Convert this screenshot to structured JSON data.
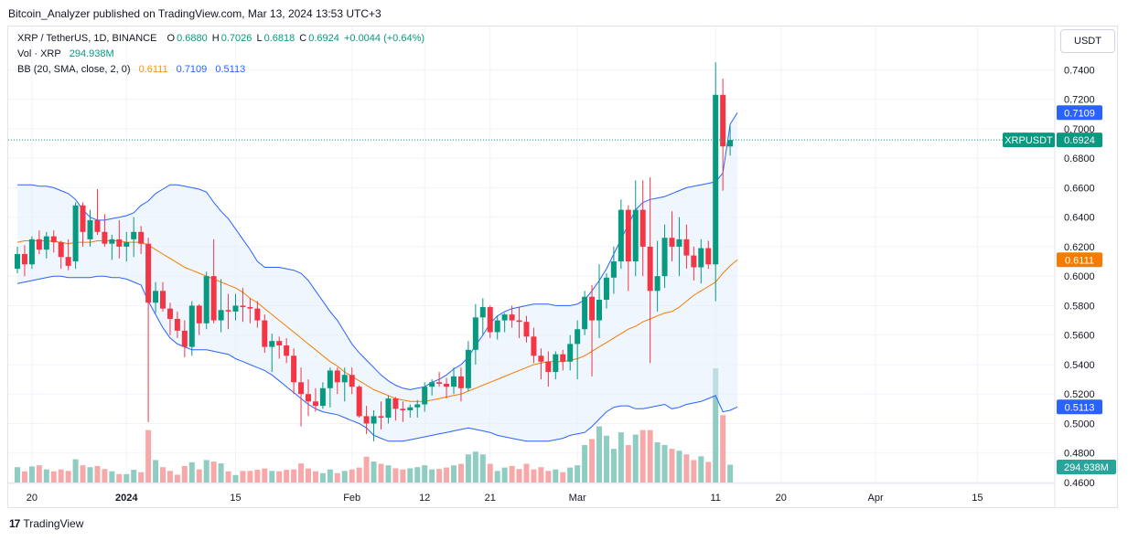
{
  "header": {
    "published": "Bitcoin_Analyzer published on TradingView.com, Mar 13, 2024 13:53 UTC+3"
  },
  "legend": {
    "symbol": "XRP / TetherUS, 1D, BINANCE",
    "o_label": "O",
    "o": "0.6880",
    "h_label": "H",
    "h": "0.7026",
    "l_label": "L",
    "l": "0.6818",
    "c_label": "C",
    "c": "0.6924",
    "change": "+0.0044 (+0.64%)",
    "vol_label": "Vol · XRP",
    "vol": "294.938M",
    "bb_label": "BB (20, SMA, close, 2, 0)",
    "bb_basis": "0.6111",
    "bb_upper": "0.7109",
    "bb_lower": "0.5113"
  },
  "currency_button": "USDT",
  "footer": {
    "brand": "TradingView",
    "logo": "17"
  },
  "colors": {
    "up": "#089981",
    "down": "#f23645",
    "bb_band": "#2962ff",
    "bb_basis": "#f57c00",
    "fill": "#eef4fc",
    "vol_up": "#8fcdc3",
    "vol_down": "#f7a9a9"
  },
  "chart_data": {
    "type": "candlestick",
    "x_ticks": [
      "20",
      "2024",
      "15",
      "Feb",
      "12",
      "21",
      "Mar",
      "11",
      "20",
      "Apr",
      "15"
    ],
    "y_ticks": [
      "0.7400",
      "0.7200",
      "0.7000",
      "0.6800",
      "0.6600",
      "0.6400",
      "0.6200",
      "0.6000",
      "0.5800",
      "0.5600",
      "0.5400",
      "0.5200",
      "0.5000",
      "0.4800",
      "0.4600"
    ],
    "ylim": [
      0.46,
      0.752
    ],
    "start_date": "2023-12-18",
    "candles": [
      {
        "o": 0.605,
        "h": 0.62,
        "l": 0.602,
        "c": 0.615,
        "v": 82
      },
      {
        "o": 0.615,
        "h": 0.621,
        "l": 0.6,
        "c": 0.608,
        "v": 60
      },
      {
        "o": 0.608,
        "h": 0.627,
        "l": 0.605,
        "c": 0.625,
        "v": 86
      },
      {
        "o": 0.625,
        "h": 0.631,
        "l": 0.615,
        "c": 0.618,
        "v": 92
      },
      {
        "o": 0.618,
        "h": 0.63,
        "l": 0.612,
        "c": 0.627,
        "v": 70
      },
      {
        "o": 0.627,
        "h": 0.631,
        "l": 0.616,
        "c": 0.623,
        "v": 60
      },
      {
        "o": 0.623,
        "h": 0.624,
        "l": 0.605,
        "c": 0.613,
        "v": 70
      },
      {
        "o": 0.613,
        "h": 0.625,
        "l": 0.604,
        "c": 0.607,
        "v": 62
      },
      {
        "o": 0.61,
        "h": 0.65,
        "l": 0.605,
        "c": 0.648,
        "v": 124
      },
      {
        "o": 0.648,
        "h": 0.65,
        "l": 0.62,
        "c": 0.63,
        "v": 92
      },
      {
        "o": 0.625,
        "h": 0.645,
        "l": 0.62,
        "c": 0.638,
        "v": 82
      },
      {
        "o": 0.638,
        "h": 0.659,
        "l": 0.628,
        "c": 0.63,
        "v": 88
      },
      {
        "o": 0.63,
        "h": 0.642,
        "l": 0.62,
        "c": 0.622,
        "v": 72
      },
      {
        "o": 0.622,
        "h": 0.628,
        "l": 0.611,
        "c": 0.625,
        "v": 60
      },
      {
        "o": 0.625,
        "h": 0.638,
        "l": 0.612,
        "c": 0.62,
        "v": 45
      },
      {
        "o": 0.62,
        "h": 0.63,
        "l": 0.61,
        "c": 0.623,
        "v": 45
      },
      {
        "o": 0.625,
        "h": 0.64,
        "l": 0.613,
        "c": 0.63,
        "v": 68
      },
      {
        "o": 0.63,
        "h": 0.634,
        "l": 0.615,
        "c": 0.622,
        "v": 55
      },
      {
        "o": 0.622,
        "h": 0.626,
        "l": 0.501,
        "c": 0.582,
        "v": 280
      },
      {
        "o": 0.582,
        "h": 0.596,
        "l": 0.575,
        "c": 0.59,
        "v": 120
      },
      {
        "o": 0.59,
        "h": 0.596,
        "l": 0.576,
        "c": 0.578,
        "v": 82
      },
      {
        "o": 0.578,
        "h": 0.582,
        "l": 0.56,
        "c": 0.571,
        "v": 62
      },
      {
        "o": 0.571,
        "h": 0.576,
        "l": 0.558,
        "c": 0.563,
        "v": 42
      },
      {
        "o": 0.563,
        "h": 0.57,
        "l": 0.545,
        "c": 0.552,
        "v": 88
      },
      {
        "o": 0.552,
        "h": 0.583,
        "l": 0.546,
        "c": 0.58,
        "v": 108
      },
      {
        "o": 0.58,
        "h": 0.581,
        "l": 0.56,
        "c": 0.568,
        "v": 70
      },
      {
        "o": 0.568,
        "h": 0.603,
        "l": 0.564,
        "c": 0.6,
        "v": 120
      },
      {
        "o": 0.6,
        "h": 0.625,
        "l": 0.568,
        "c": 0.57,
        "v": 112
      },
      {
        "o": 0.57,
        "h": 0.598,
        "l": 0.562,
        "c": 0.577,
        "v": 102
      },
      {
        "o": 0.577,
        "h": 0.588,
        "l": 0.564,
        "c": 0.576,
        "v": 60
      },
      {
        "o": 0.576,
        "h": 0.588,
        "l": 0.57,
        "c": 0.58,
        "v": 40
      },
      {
        "o": 0.58,
        "h": 0.592,
        "l": 0.569,
        "c": 0.579,
        "v": 62
      },
      {
        "o": 0.579,
        "h": 0.585,
        "l": 0.568,
        "c": 0.578,
        "v": 62
      },
      {
        "o": 0.578,
        "h": 0.583,
        "l": 0.565,
        "c": 0.57,
        "v": 68
      },
      {
        "o": 0.57,
        "h": 0.574,
        "l": 0.548,
        "c": 0.552,
        "v": 75
      },
      {
        "o": 0.552,
        "h": 0.561,
        "l": 0.535,
        "c": 0.556,
        "v": 62
      },
      {
        "o": 0.556,
        "h": 0.559,
        "l": 0.544,
        "c": 0.553,
        "v": 60
      },
      {
        "o": 0.553,
        "h": 0.558,
        "l": 0.541,
        "c": 0.546,
        "v": 68
      },
      {
        "o": 0.546,
        "h": 0.551,
        "l": 0.52,
        "c": 0.528,
        "v": 70
      },
      {
        "o": 0.528,
        "h": 0.538,
        "l": 0.498,
        "c": 0.52,
        "v": 102
      },
      {
        "o": 0.52,
        "h": 0.53,
        "l": 0.505,
        "c": 0.515,
        "v": 75
      },
      {
        "o": 0.515,
        "h": 0.524,
        "l": 0.508,
        "c": 0.512,
        "v": 60
      },
      {
        "o": 0.512,
        "h": 0.528,
        "l": 0.51,
        "c": 0.524,
        "v": 50
      },
      {
        "o": 0.524,
        "h": 0.538,
        "l": 0.511,
        "c": 0.536,
        "v": 70
      },
      {
        "o": 0.536,
        "h": 0.538,
        "l": 0.52,
        "c": 0.528,
        "v": 50
      },
      {
        "o": 0.528,
        "h": 0.538,
        "l": 0.515,
        "c": 0.533,
        "v": 62
      },
      {
        "o": 0.533,
        "h": 0.538,
        "l": 0.52,
        "c": 0.525,
        "v": 70
      },
      {
        "o": 0.525,
        "h": 0.526,
        "l": 0.504,
        "c": 0.505,
        "v": 80
      },
      {
        "o": 0.505,
        "h": 0.512,
        "l": 0.493,
        "c": 0.5,
        "v": 138
      },
      {
        "o": 0.5,
        "h": 0.509,
        "l": 0.488,
        "c": 0.505,
        "v": 112
      },
      {
        "o": 0.505,
        "h": 0.515,
        "l": 0.496,
        "c": 0.504,
        "v": 100
      },
      {
        "o": 0.504,
        "h": 0.519,
        "l": 0.5,
        "c": 0.517,
        "v": 92
      },
      {
        "o": 0.517,
        "h": 0.518,
        "l": 0.502,
        "c": 0.51,
        "v": 76
      },
      {
        "o": 0.51,
        "h": 0.515,
        "l": 0.501,
        "c": 0.509,
        "v": 70
      },
      {
        "o": 0.509,
        "h": 0.513,
        "l": 0.504,
        "c": 0.511,
        "v": 76
      },
      {
        "o": 0.511,
        "h": 0.516,
        "l": 0.504,
        "c": 0.513,
        "v": 82
      },
      {
        "o": 0.513,
        "h": 0.528,
        "l": 0.508,
        "c": 0.525,
        "v": 92
      },
      {
        "o": 0.525,
        "h": 0.53,
        "l": 0.519,
        "c": 0.528,
        "v": 70
      },
      {
        "o": 0.528,
        "h": 0.535,
        "l": 0.525,
        "c": 0.527,
        "v": 72
      },
      {
        "o": 0.527,
        "h": 0.531,
        "l": 0.517,
        "c": 0.525,
        "v": 80
      },
      {
        "o": 0.525,
        "h": 0.538,
        "l": 0.52,
        "c": 0.532,
        "v": 92
      },
      {
        "o": 0.532,
        "h": 0.538,
        "l": 0.515,
        "c": 0.524,
        "v": 100
      },
      {
        "o": 0.524,
        "h": 0.556,
        "l": 0.522,
        "c": 0.55,
        "v": 150
      },
      {
        "o": 0.55,
        "h": 0.581,
        "l": 0.54,
        "c": 0.572,
        "v": 165
      },
      {
        "o": 0.572,
        "h": 0.585,
        "l": 0.56,
        "c": 0.579,
        "v": 150
      },
      {
        "o": 0.579,
        "h": 0.58,
        "l": 0.558,
        "c": 0.562,
        "v": 100
      },
      {
        "o": 0.562,
        "h": 0.573,
        "l": 0.557,
        "c": 0.57,
        "v": 62
      },
      {
        "o": 0.57,
        "h": 0.575,
        "l": 0.562,
        "c": 0.574,
        "v": 80
      },
      {
        "o": 0.574,
        "h": 0.58,
        "l": 0.565,
        "c": 0.57,
        "v": 88
      },
      {
        "o": 0.57,
        "h": 0.579,
        "l": 0.558,
        "c": 0.569,
        "v": 72
      },
      {
        "o": 0.569,
        "h": 0.573,
        "l": 0.555,
        "c": 0.559,
        "v": 100
      },
      {
        "o": 0.559,
        "h": 0.565,
        "l": 0.541,
        "c": 0.546,
        "v": 70
      },
      {
        "o": 0.546,
        "h": 0.551,
        "l": 0.53,
        "c": 0.542,
        "v": 82
      },
      {
        "o": 0.542,
        "h": 0.549,
        "l": 0.525,
        "c": 0.535,
        "v": 62
      },
      {
        "o": 0.535,
        "h": 0.549,
        "l": 0.53,
        "c": 0.547,
        "v": 70
      },
      {
        "o": 0.547,
        "h": 0.55,
        "l": 0.536,
        "c": 0.542,
        "v": 55
      },
      {
        "o": 0.542,
        "h": 0.56,
        "l": 0.536,
        "c": 0.554,
        "v": 80
      },
      {
        "o": 0.554,
        "h": 0.57,
        "l": 0.53,
        "c": 0.564,
        "v": 92
      },
      {
        "o": 0.564,
        "h": 0.59,
        "l": 0.56,
        "c": 0.586,
        "v": 200
      },
      {
        "o": 0.586,
        "h": 0.594,
        "l": 0.532,
        "c": 0.57,
        "v": 232
      },
      {
        "o": 0.57,
        "h": 0.608,
        "l": 0.558,
        "c": 0.584,
        "v": 300
      },
      {
        "o": 0.584,
        "h": 0.602,
        "l": 0.578,
        "c": 0.599,
        "v": 250
      },
      {
        "o": 0.599,
        "h": 0.62,
        "l": 0.588,
        "c": 0.61,
        "v": 180
      },
      {
        "o": 0.61,
        "h": 0.652,
        "l": 0.605,
        "c": 0.645,
        "v": 268
      },
      {
        "o": 0.645,
        "h": 0.648,
        "l": 0.59,
        "c": 0.61,
        "v": 200
      },
      {
        "o": 0.61,
        "h": 0.665,
        "l": 0.6,
        "c": 0.645,
        "v": 256
      },
      {
        "o": 0.645,
        "h": 0.665,
        "l": 0.6,
        "c": 0.62,
        "v": 280
      },
      {
        "o": 0.62,
        "h": 0.667,
        "l": 0.541,
        "c": 0.59,
        "v": 280
      },
      {
        "o": 0.59,
        "h": 0.624,
        "l": 0.576,
        "c": 0.6,
        "v": 215
      },
      {
        "o": 0.6,
        "h": 0.635,
        "l": 0.592,
        "c": 0.626,
        "v": 200
      },
      {
        "o": 0.626,
        "h": 0.644,
        "l": 0.61,
        "c": 0.62,
        "v": 180
      },
      {
        "o": 0.62,
        "h": 0.64,
        "l": 0.6,
        "c": 0.625,
        "v": 170
      },
      {
        "o": 0.625,
        "h": 0.635,
        "l": 0.605,
        "c": 0.614,
        "v": 150
      },
      {
        "o": 0.614,
        "h": 0.62,
        "l": 0.597,
        "c": 0.606,
        "v": 120
      },
      {
        "o": 0.606,
        "h": 0.625,
        "l": 0.595,
        "c": 0.619,
        "v": 140
      },
      {
        "o": 0.619,
        "h": 0.624,
        "l": 0.605,
        "c": 0.608,
        "v": 110
      },
      {
        "o": 0.608,
        "h": 0.745,
        "l": 0.583,
        "c": 0.723,
        "v": 610
      },
      {
        "o": 0.723,
        "h": 0.734,
        "l": 0.658,
        "c": 0.688,
        "v": 360
      },
      {
        "o": 0.688,
        "h": 0.7026,
        "l": 0.6818,
        "c": 0.6924,
        "v": 95
      }
    ],
    "bb_upper": [
      0.662,
      0.662,
      0.662,
      0.661,
      0.661,
      0.66,
      0.658,
      0.656,
      0.652,
      0.645,
      0.64,
      0.638,
      0.638,
      0.639,
      0.64,
      0.641,
      0.643,
      0.648,
      0.651,
      0.656,
      0.659,
      0.662,
      0.662,
      0.661,
      0.66,
      0.659,
      0.657,
      0.65,
      0.644,
      0.639,
      0.632,
      0.625,
      0.618,
      0.61,
      0.606,
      0.606,
      0.606,
      0.605,
      0.604,
      0.602,
      0.597,
      0.59,
      0.583,
      0.576,
      0.57,
      0.562,
      0.554,
      0.548,
      0.543,
      0.538,
      0.533,
      0.529,
      0.526,
      0.524,
      0.523,
      0.524,
      0.525,
      0.528,
      0.53,
      0.533,
      0.537,
      0.54,
      0.545,
      0.553,
      0.56,
      0.568,
      0.573,
      0.576,
      0.578,
      0.579,
      0.58,
      0.581,
      0.581,
      0.581,
      0.58,
      0.58,
      0.58,
      0.581,
      0.584,
      0.59,
      0.597,
      0.605,
      0.615,
      0.625,
      0.635,
      0.645,
      0.65,
      0.652,
      0.653,
      0.654,
      0.656,
      0.658,
      0.66,
      0.661,
      0.662,
      0.663,
      0.664,
      0.67,
      0.703,
      0.7109
    ],
    "bb_basis": [
      0.623,
      0.624,
      0.624,
      0.624,
      0.624,
      0.6235,
      0.623,
      0.622,
      0.623,
      0.623,
      0.623,
      0.624,
      0.624,
      0.624,
      0.624,
      0.623,
      0.623,
      0.623,
      0.621,
      0.618,
      0.615,
      0.612,
      0.609,
      0.606,
      0.604,
      0.602,
      0.6,
      0.598,
      0.596,
      0.594,
      0.592,
      0.589,
      0.585,
      0.582,
      0.578,
      0.574,
      0.57,
      0.566,
      0.562,
      0.558,
      0.554,
      0.55,
      0.546,
      0.542,
      0.539,
      0.535,
      0.532,
      0.529,
      0.526,
      0.523,
      0.521,
      0.519,
      0.517,
      0.516,
      0.515,
      0.515,
      0.515,
      0.516,
      0.517,
      0.518,
      0.519,
      0.52,
      0.522,
      0.524,
      0.526,
      0.528,
      0.53,
      0.532,
      0.534,
      0.536,
      0.538,
      0.54,
      0.541,
      0.542,
      0.542,
      0.542,
      0.543,
      0.544,
      0.546,
      0.549,
      0.552,
      0.555,
      0.558,
      0.561,
      0.564,
      0.566,
      0.569,
      0.571,
      0.573,
      0.575,
      0.576,
      0.579,
      0.583,
      0.587,
      0.59,
      0.593,
      0.596,
      0.602,
      0.607,
      0.6111
    ],
    "bb_lower": [
      0.595,
      0.596,
      0.597,
      0.598,
      0.599,
      0.6,
      0.6,
      0.599,
      0.599,
      0.599,
      0.599,
      0.6,
      0.6,
      0.599,
      0.599,
      0.598,
      0.596,
      0.594,
      0.583,
      0.574,
      0.565,
      0.558,
      0.554,
      0.552,
      0.55,
      0.55,
      0.55,
      0.549,
      0.548,
      0.547,
      0.544,
      0.542,
      0.54,
      0.538,
      0.536,
      0.533,
      0.529,
      0.525,
      0.521,
      0.517,
      0.513,
      0.51,
      0.508,
      0.507,
      0.506,
      0.504,
      0.502,
      0.5,
      0.497,
      0.492,
      0.49,
      0.488,
      0.488,
      0.488,
      0.489,
      0.49,
      0.491,
      0.492,
      0.493,
      0.494,
      0.495,
      0.496,
      0.497,
      0.496,
      0.495,
      0.494,
      0.492,
      0.491,
      0.49,
      0.489,
      0.488,
      0.488,
      0.488,
      0.488,
      0.489,
      0.49,
      0.492,
      0.493,
      0.494,
      0.498,
      0.503,
      0.508,
      0.511,
      0.512,
      0.512,
      0.51,
      0.51,
      0.511,
      0.512,
      0.513,
      0.51,
      0.511,
      0.513,
      0.514,
      0.515,
      0.517,
      0.519,
      0.508,
      0.509,
      0.5113
    ],
    "price_tags": [
      {
        "text": "0.7109",
        "value": 0.7109,
        "color": "#2962ff"
      },
      {
        "text": "0.6924",
        "value": 0.6924,
        "color": "#089981"
      },
      {
        "text": "0.6111",
        "value": 0.6111,
        "color": "#f57c00"
      },
      {
        "text": "0.5113",
        "value": 0.5113,
        "color": "#2962ff"
      }
    ],
    "symbol_tag": "XRPUSDT",
    "volume_tag": "294.938M"
  }
}
